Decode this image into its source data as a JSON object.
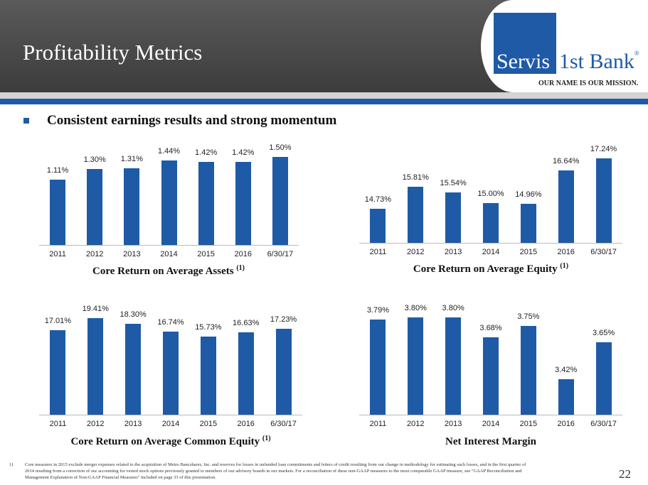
{
  "header": {
    "title": "Profitability Metrics"
  },
  "logo": {
    "name_part1": "Servis",
    "name_part2": "1st Bank",
    "registered": "®",
    "tagline": "OUR NAME IS OUR MISSION."
  },
  "bullet": "Consistent earnings results and strong momentum",
  "colors": {
    "brand_blue": "#1f5aa6"
  },
  "chart_data": [
    {
      "type": "bar",
      "title": "Core Return on Average Assets",
      "footnote_ref": "(1)",
      "categories": [
        "2011",
        "2012",
        "2013",
        "2014",
        "2015",
        "2016",
        "6/30/17"
      ],
      "values": [
        1.11,
        1.3,
        1.31,
        1.44,
        1.42,
        1.42,
        1.5
      ],
      "labels": [
        "1.11%",
        "1.30%",
        "1.31%",
        "1.44%",
        "1.42%",
        "1.42%",
        "1.50%"
      ],
      "ylim": [
        0,
        1.6
      ],
      "grid": false
    },
    {
      "type": "bar",
      "title": "Core Return on Average Equity",
      "footnote_ref": "(1)",
      "categories": [
        "2011",
        "2012",
        "2013",
        "2014",
        "2015",
        "2016",
        "6/30/17"
      ],
      "values": [
        14.73,
        15.81,
        15.54,
        15.0,
        14.96,
        16.64,
        17.24
      ],
      "labels": [
        "14.73%",
        "15.81%",
        "15.54%",
        "15.00%",
        "14.96%",
        "16.64%",
        "17.24%"
      ],
      "ylim": [
        13,
        17.5
      ],
      "grid": false
    },
    {
      "type": "bar",
      "title": "Core Return on Average Common Equity",
      "footnote_ref": "(1)",
      "categories": [
        "2011",
        "2012",
        "2013",
        "2014",
        "2015",
        "2016",
        "6/30/17"
      ],
      "values": [
        17.01,
        19.41,
        18.3,
        16.74,
        15.73,
        16.63,
        17.23
      ],
      "labels": [
        "17.01%",
        "19.41%",
        "18.30%",
        "16.74%",
        "15.73%",
        "16.63%",
        "17.23%"
      ],
      "ylim": [
        0,
        20
      ],
      "grid": false
    },
    {
      "type": "bar",
      "title": "Net Interest Margin",
      "footnote_ref": "",
      "categories": [
        "2011",
        "2012",
        "2013",
        "2014",
        "2015",
        "2016",
        "6/30/17"
      ],
      "values": [
        3.79,
        3.8,
        3.8,
        3.68,
        3.75,
        3.42,
        3.65
      ],
      "labels": [
        "3.79%",
        "3.80%",
        "3.80%",
        "3.68%",
        "3.75%",
        "3.42%",
        "3.65%"
      ],
      "ylim": [
        3.2,
        3.85
      ],
      "grid": false
    }
  ],
  "footnote": {
    "number": "1)",
    "text": "Core measures in 2015 exclude merger expenses related to the acquisition of Metro Bancshares, Inc. and reserves for losses in unfunded loan commitments and letters of credit resulting from our change in methodology for estimating such losses, and in the first quarter of 2014 resulting from a correction of our accounting for vested stock options previously granted to members of our advisory boards in our markets.  For a reconciliation of these non-GAAP measures to the most comparable GAAP measure, see \"GAAP Reconciliation and Management Explanation of Non-GAAP Financial Measures\" included on page 33 of this presentation."
  },
  "page_number": "22"
}
